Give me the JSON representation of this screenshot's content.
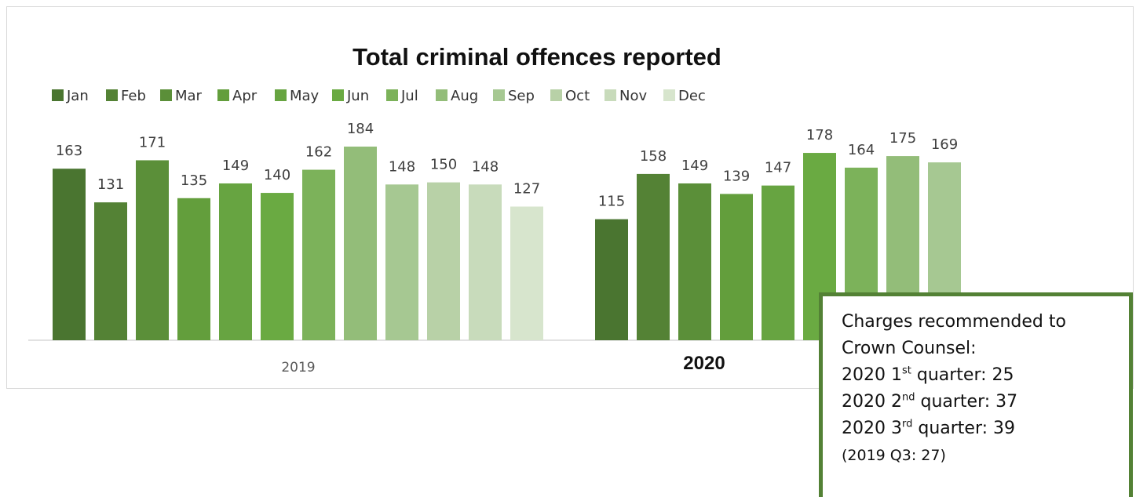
{
  "chart_data": {
    "type": "bar",
    "title": "Total criminal offences reported",
    "xlabel": "",
    "ylabel": "",
    "legend_position": "top-left",
    "grid": false,
    "ylim": [
      0,
      200
    ],
    "months": [
      "Jan",
      "Feb",
      "Mar",
      "Apr",
      "May",
      "Jun",
      "Jul",
      "Aug",
      "Sep",
      "Oct",
      "Nov",
      "Dec"
    ],
    "colors": [
      "#4a7530",
      "#548235",
      "#5b8f39",
      "#639e3c",
      "#67a441",
      "#6aaa42",
      "#7cb25a",
      "#93bd79",
      "#a6c892",
      "#b8d1a7",
      "#c8dbbb",
      "#d7e5cd"
    ],
    "groups": [
      {
        "category": "2019",
        "bold": false,
        "values": [
          163,
          131,
          171,
          135,
          149,
          140,
          162,
          184,
          148,
          150,
          148,
          127
        ]
      },
      {
        "category": "2020",
        "bold": true,
        "values": [
          115,
          158,
          149,
          139,
          147,
          178,
          164,
          175,
          169
        ]
      }
    ]
  },
  "note": {
    "line1": "Charges recommended to",
    "line2": "Crown Counsel:",
    "q1": {
      "prefix": "2020 1",
      "sup": "st",
      "suffix": " quarter: 25"
    },
    "q2": {
      "prefix": "2020 2",
      "sup": "nd",
      "suffix": " quarter: 37"
    },
    "q3": {
      "prefix": "2020 3",
      "sup": "rd",
      "suffix": " quarter: 39"
    },
    "comparison": "(2019 Q3: 27)"
  }
}
